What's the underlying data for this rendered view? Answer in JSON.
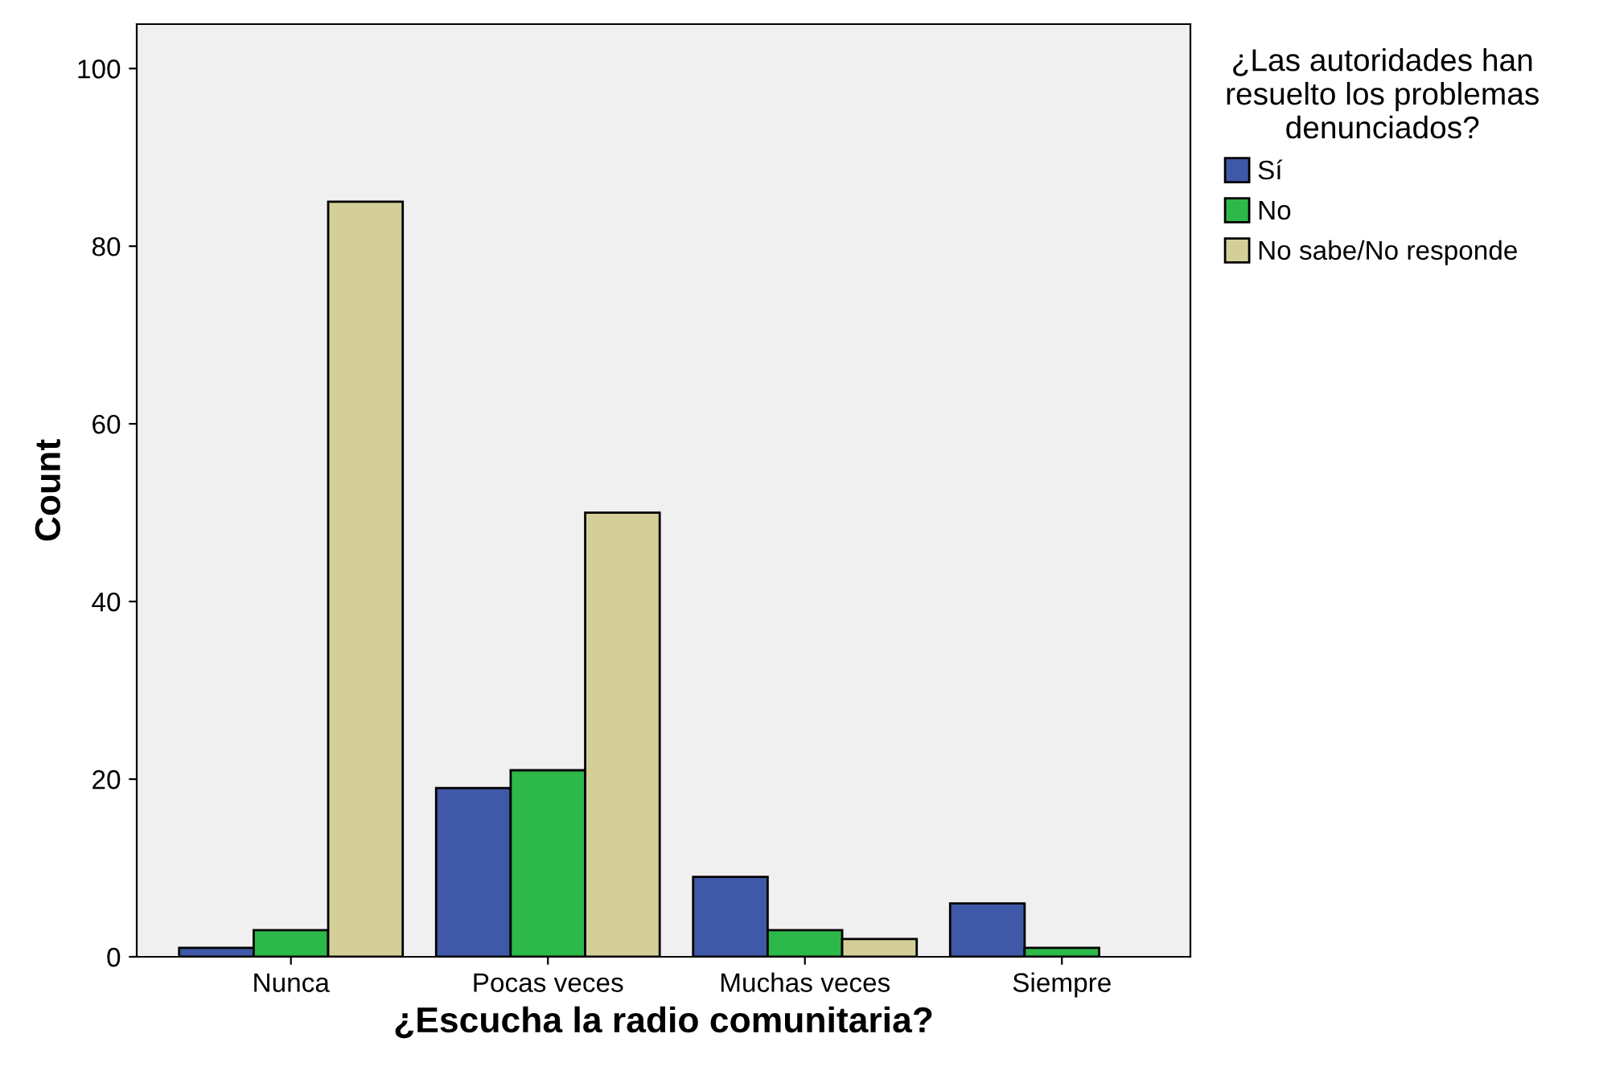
{
  "chart_data": {
    "type": "bar",
    "xlabel": "¿Escucha la radio comunitaria?",
    "ylabel": "Count",
    "legend_title": "¿Las autoridades han\nresuelto los problemas\ndenunciados?",
    "categories": [
      "Nunca",
      "Pocas veces",
      "Muchas veces",
      "Siempre"
    ],
    "series": [
      {
        "name": "Sí",
        "color": "#3f59a8",
        "values": [
          1,
          19,
          9,
          6
        ]
      },
      {
        "name": "No",
        "color": "#2db84a",
        "values": [
          3,
          21,
          3,
          1
        ]
      },
      {
        "name": "No sabe/No responde",
        "color": "#d4cf98",
        "values": [
          85,
          50,
          2,
          null
        ]
      }
    ],
    "ylim": [
      0,
      105
    ],
    "yticks": [
      0,
      20,
      40,
      60,
      80,
      100
    ],
    "grid": false,
    "legend": "top right"
  }
}
